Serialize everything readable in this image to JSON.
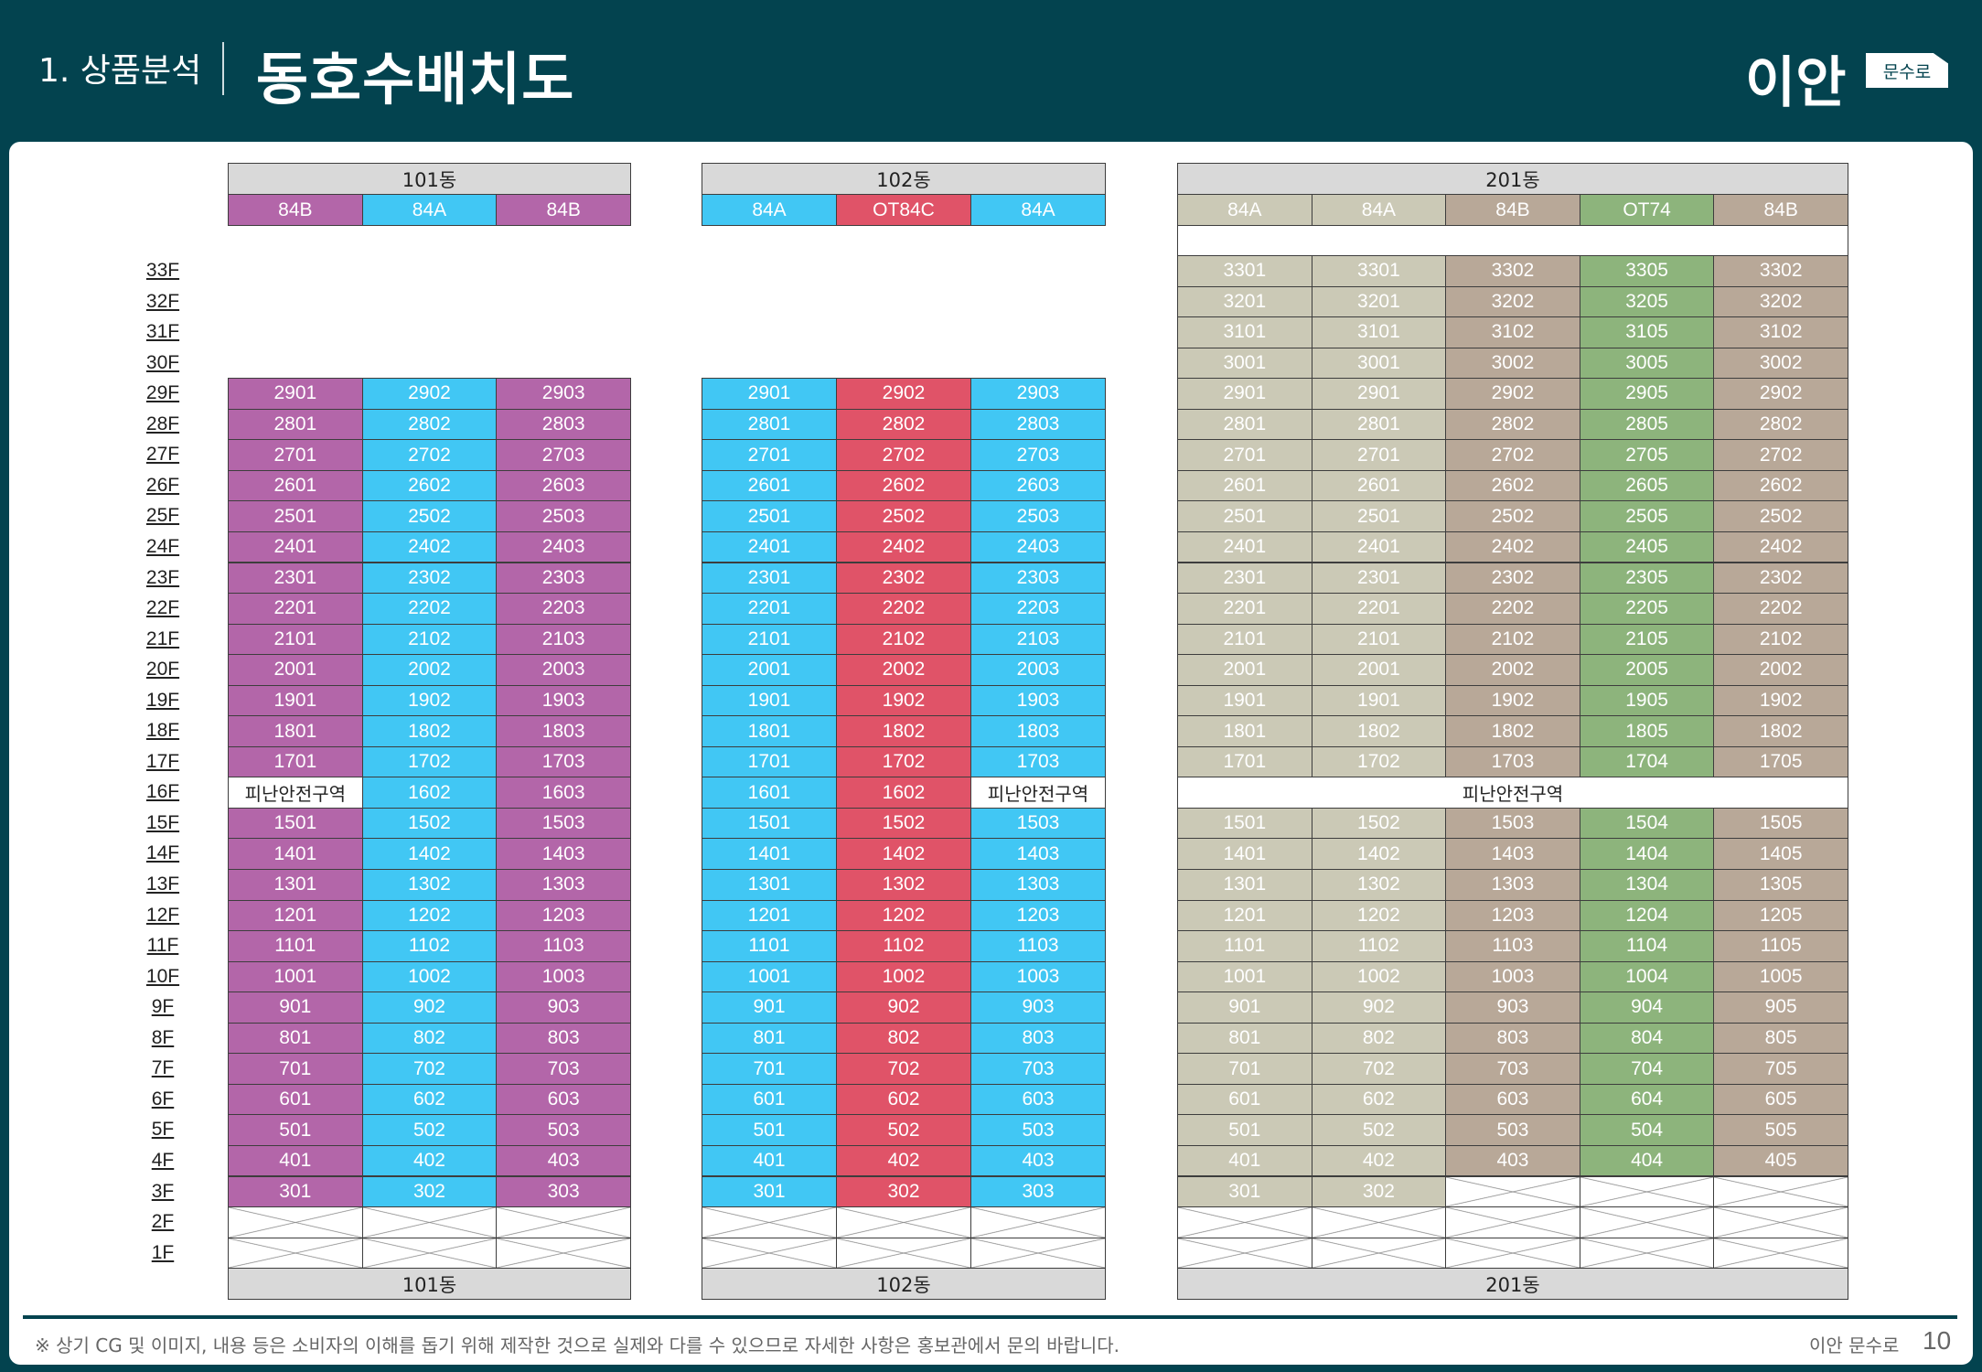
{
  "header": {
    "section": "1. 상품분석",
    "title": "동호수배치도"
  },
  "logo": {
    "main": "이안",
    "tag": "문수로"
  },
  "floors": [
    "33F",
    "32F",
    "31F",
    "30F",
    "29F",
    "28F",
    "27F",
    "26F",
    "25F",
    "24F",
    "23F",
    "22F",
    "21F",
    "20F",
    "19F",
    "18F",
    "17F",
    "16F",
    "15F",
    "14F",
    "13F",
    "12F",
    "11F",
    "10F",
    "9F",
    "8F",
    "7F",
    "6F",
    "5F",
    "4F",
    "3F",
    "2F",
    "1F"
  ],
  "buildings": [
    {
      "name": "101동",
      "columns": [
        {
          "type": "84B",
          "color": "#b366a9"
        },
        {
          "type": "84A",
          "color": "#41c7f4"
        },
        {
          "type": "84B",
          "color": "#b366a9"
        }
      ],
      "rows": [
        null,
        null,
        null,
        null,
        [
          "2901",
          "2902",
          "2903"
        ],
        [
          "2801",
          "2802",
          "2803"
        ],
        [
          "2701",
          "2702",
          "2703"
        ],
        [
          "2601",
          "2602",
          "2603"
        ],
        [
          "2501",
          "2502",
          "2503"
        ],
        [
          "2401",
          "2402",
          "2403"
        ],
        [
          "2301",
          "2302",
          "2303"
        ],
        [
          "2201",
          "2202",
          "2203"
        ],
        [
          "2101",
          "2102",
          "2103"
        ],
        [
          "2001",
          "2002",
          "2003"
        ],
        [
          "1901",
          "1902",
          "1903"
        ],
        [
          "1801",
          "1802",
          "1803"
        ],
        [
          "1701",
          "1702",
          "1703"
        ],
        [
          "피난안전구역",
          "1602",
          "1603"
        ],
        [
          "1501",
          "1502",
          "1503"
        ],
        [
          "1401",
          "1402",
          "1403"
        ],
        [
          "1301",
          "1302",
          "1303"
        ],
        [
          "1201",
          "1202",
          "1203"
        ],
        [
          "1101",
          "1102",
          "1103"
        ],
        [
          "1001",
          "1002",
          "1003"
        ],
        [
          "901",
          "902",
          "903"
        ],
        [
          "801",
          "802",
          "803"
        ],
        [
          "701",
          "702",
          "703"
        ],
        [
          "601",
          "602",
          "603"
        ],
        [
          "501",
          "502",
          "503"
        ],
        [
          "401",
          "402",
          "403"
        ],
        [
          "301",
          "302",
          "303"
        ],
        [
          "",
          "",
          ""
        ],
        [
          "",
          "",
          ""
        ]
      ]
    },
    {
      "name": "102동",
      "columns": [
        {
          "type": "84A",
          "color": "#41c7f4"
        },
        {
          "type": "OT84C",
          "color": "#e05368"
        },
        {
          "type": "84A",
          "color": "#41c7f4"
        }
      ],
      "rows": [
        null,
        null,
        null,
        null,
        [
          "2901",
          "2902",
          "2903"
        ],
        [
          "2801",
          "2802",
          "2803"
        ],
        [
          "2701",
          "2702",
          "2703"
        ],
        [
          "2601",
          "2602",
          "2603"
        ],
        [
          "2501",
          "2502",
          "2503"
        ],
        [
          "2401",
          "2402",
          "2403"
        ],
        [
          "2301",
          "2302",
          "2303"
        ],
        [
          "2201",
          "2202",
          "2203"
        ],
        [
          "2101",
          "2102",
          "2103"
        ],
        [
          "2001",
          "2002",
          "2003"
        ],
        [
          "1901",
          "1902",
          "1903"
        ],
        [
          "1801",
          "1802",
          "1803"
        ],
        [
          "1701",
          "1702",
          "1703"
        ],
        [
          "1601",
          "1602",
          "피난안전구역"
        ],
        [
          "1501",
          "1502",
          "1503"
        ],
        [
          "1401",
          "1402",
          "1403"
        ],
        [
          "1301",
          "1302",
          "1303"
        ],
        [
          "1201",
          "1202",
          "1203"
        ],
        [
          "1101",
          "1102",
          "1103"
        ],
        [
          "1001",
          "1002",
          "1003"
        ],
        [
          "901",
          "902",
          "903"
        ],
        [
          "801",
          "802",
          "803"
        ],
        [
          "701",
          "702",
          "703"
        ],
        [
          "601",
          "602",
          "603"
        ],
        [
          "501",
          "502",
          "503"
        ],
        [
          "401",
          "402",
          "403"
        ],
        [
          "301",
          "302",
          "303"
        ],
        [
          "",
          "",
          ""
        ],
        [
          "",
          "",
          ""
        ]
      ]
    },
    {
      "name": "201동",
      "columns": [
        {
          "type": "84A",
          "color": "#cbc9b6"
        },
        {
          "type": "84A",
          "color": "#cbc9b6"
        },
        {
          "type": "84B",
          "color": "#b8a898"
        },
        {
          "type": "OT74",
          "color": "#8db47c"
        },
        {
          "type": "84B",
          "color": "#b8a898"
        }
      ],
      "rows": [
        [
          "3301",
          "3301",
          "3302",
          "3305",
          "3302"
        ],
        [
          "3201",
          "3201",
          "3202",
          "3205",
          "3202"
        ],
        [
          "3101",
          "3101",
          "3102",
          "3105",
          "3102"
        ],
        [
          "3001",
          "3001",
          "3002",
          "3005",
          "3002"
        ],
        [
          "2901",
          "2901",
          "2902",
          "2905",
          "2902"
        ],
        [
          "2801",
          "2801",
          "2802",
          "2805",
          "2802"
        ],
        [
          "2701",
          "2701",
          "2702",
          "2705",
          "2702"
        ],
        [
          "2601",
          "2601",
          "2602",
          "2605",
          "2602"
        ],
        [
          "2501",
          "2501",
          "2502",
          "2505",
          "2502"
        ],
        [
          "2401",
          "2401",
          "2402",
          "2405",
          "2402"
        ],
        [
          "2301",
          "2301",
          "2302",
          "2305",
          "2302"
        ],
        [
          "2201",
          "2201",
          "2202",
          "2205",
          "2202"
        ],
        [
          "2101",
          "2101",
          "2102",
          "2105",
          "2102"
        ],
        [
          "2001",
          "2001",
          "2002",
          "2005",
          "2002"
        ],
        [
          "1901",
          "1901",
          "1902",
          "1905",
          "1902"
        ],
        [
          "1801",
          "1802",
          "1802",
          "1805",
          "1802"
        ],
        [
          "1701",
          "1702",
          "1703",
          "1704",
          "1705"
        ],
        [
          "피난안전구역"
        ],
        [
          "1501",
          "1502",
          "1503",
          "1504",
          "1505"
        ],
        [
          "1401",
          "1402",
          "1403",
          "1404",
          "1405"
        ],
        [
          "1301",
          "1302",
          "1303",
          "1304",
          "1305"
        ],
        [
          "1201",
          "1202",
          "1203",
          "1204",
          "1205"
        ],
        [
          "1101",
          "1102",
          "1103",
          "1104",
          "1105"
        ],
        [
          "1001",
          "1002",
          "1003",
          "1004",
          "1005"
        ],
        [
          "901",
          "902",
          "903",
          "904",
          "905"
        ],
        [
          "801",
          "802",
          "803",
          "804",
          "805"
        ],
        [
          "701",
          "702",
          "703",
          "704",
          "705"
        ],
        [
          "601",
          "602",
          "603",
          "604",
          "605"
        ],
        [
          "501",
          "502",
          "503",
          "504",
          "505"
        ],
        [
          "401",
          "402",
          "403",
          "404",
          "405"
        ],
        [
          "301",
          "302",
          "",
          "",
          ""
        ],
        [
          "",
          "",
          "",
          "",
          ""
        ],
        [
          "",
          "",
          "",
          "",
          ""
        ]
      ]
    }
  ],
  "footer": {
    "disclaimer": "※ 상기 CG 및 이미지, 내용 등은 소비자의 이해를 돕기 위해 제작한 것으로 실제와 다를 수 있으므로 자세한 사항은 홍보관에서 문의 바랍니다.",
    "brand": "이안 문수로",
    "page": "10"
  }
}
